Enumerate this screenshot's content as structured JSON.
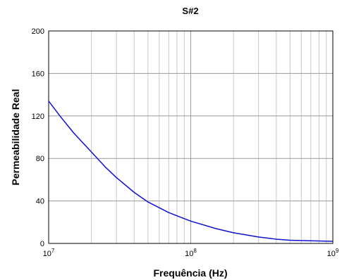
{
  "chart_data": {
    "type": "line",
    "title": "S#2",
    "xlabel": "Frequência (Hz)",
    "ylabel": "Permeabilidade Real",
    "xscale": "log",
    "xlim": [
      10000000,
      1000000000
    ],
    "ylim": [
      0,
      200
    ],
    "x_ticks": [
      {
        "base": "10",
        "exp": "7",
        "value": 10000000
      },
      {
        "base": "10",
        "exp": "8",
        "value": 100000000
      },
      {
        "base": "10",
        "exp": "9",
        "value": 1000000000
      }
    ],
    "y_ticks": [
      0,
      40,
      80,
      120,
      160,
      200
    ],
    "grid": true,
    "legend": "none",
    "series": [
      {
        "color": "#1010d0",
        "x": [
          10000000,
          12000000,
          15000000,
          20000000,
          25000000,
          30000000,
          40000000,
          50000000,
          70000000,
          100000000,
          150000000,
          200000000,
          300000000,
          400000000,
          500000000,
          700000000,
          1000000000
        ],
        "y": [
          134,
          120,
          104,
          86,
          72,
          62,
          48,
          39,
          29,
          21,
          14,
          10,
          6,
          4,
          3,
          2.5,
          2
        ]
      }
    ]
  }
}
